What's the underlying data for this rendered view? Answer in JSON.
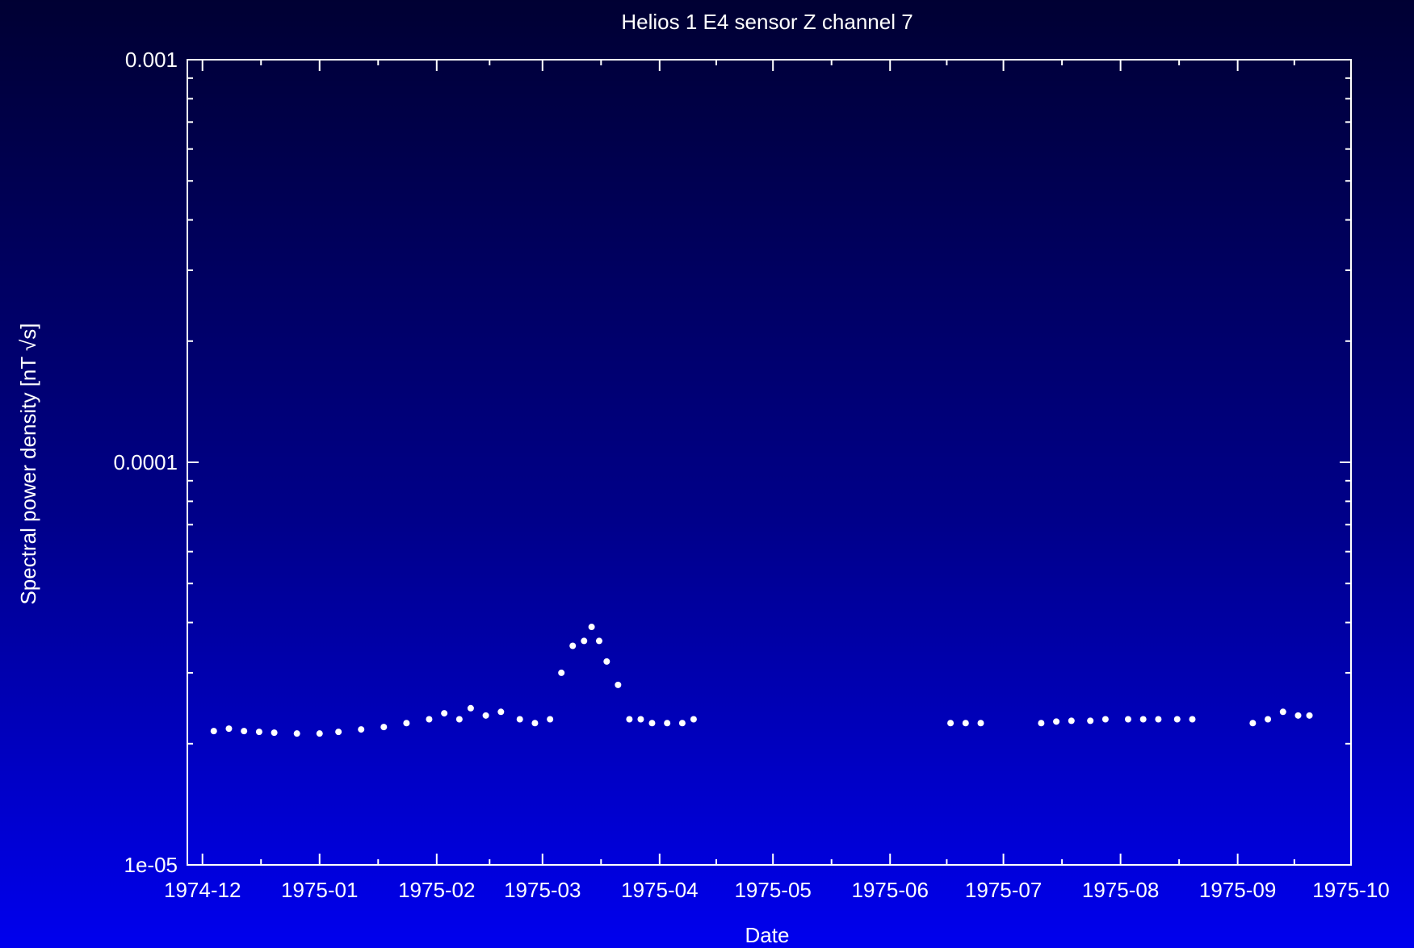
{
  "chart_data": {
    "type": "scatter",
    "title": "Helios 1 E4 sensor Z channel 7",
    "xlabel": "Date",
    "ylabel": "Spectral power density [nT √s]",
    "yscale": "log",
    "ylim": [
      1e-05,
      0.001
    ],
    "xlim": [
      "1974-11-27",
      "1975-10-01"
    ],
    "x_ticks": [
      "1974-12",
      "1975-01",
      "1975-02",
      "1975-03",
      "1975-04",
      "1975-05",
      "1975-06",
      "1975-07",
      "1975-08",
      "1975-09",
      "1975-10"
    ],
    "y_ticks": [
      "1e-05",
      "0.0001",
      "0.001"
    ],
    "grid": false,
    "legend": "none",
    "point_color": "#ffffff",
    "series": [
      {
        "x": [
          "1974-12-04",
          "1974-12-08",
          "1974-12-12",
          "1974-12-16",
          "1974-12-20",
          "1974-12-26",
          "1975-01-01",
          "1975-01-06",
          "1975-01-12",
          "1975-01-18",
          "1975-01-24",
          "1975-01-30",
          "1975-02-03",
          "1975-02-07",
          "1975-02-10",
          "1975-02-14",
          "1975-02-18",
          "1975-02-23",
          "1975-02-27",
          "1975-03-03",
          "1975-03-06",
          "1975-03-09",
          "1975-03-12",
          "1975-03-14",
          "1975-03-16",
          "1975-03-18",
          "1975-03-21",
          "1975-03-24",
          "1975-03-27",
          "1975-03-30",
          "1975-04-03",
          "1975-04-07",
          "1975-04-10",
          "1975-06-17",
          "1975-06-21",
          "1975-06-25",
          "1975-07-11",
          "1975-07-15",
          "1975-07-19",
          "1975-07-24",
          "1975-07-28",
          "1975-08-03",
          "1975-08-07",
          "1975-08-11",
          "1975-08-16",
          "1975-08-20",
          "1975-09-05",
          "1975-09-09",
          "1975-09-13",
          "1975-09-17",
          "1975-09-20"
        ],
        "y": [
          2.15e-05,
          2.18e-05,
          2.15e-05,
          2.14e-05,
          2.13e-05,
          2.12e-05,
          2.12e-05,
          2.14e-05,
          2.17e-05,
          2.2e-05,
          2.25e-05,
          2.3e-05,
          2.38e-05,
          2.3e-05,
          2.45e-05,
          2.35e-05,
          2.4e-05,
          2.3e-05,
          2.25e-05,
          2.3e-05,
          3e-05,
          3.5e-05,
          3.6e-05,
          3.9e-05,
          3.6e-05,
          3.2e-05,
          2.8e-05,
          2.3e-05,
          2.3e-05,
          2.25e-05,
          2.25e-05,
          2.25e-05,
          2.3e-05,
          2.25e-05,
          2.25e-05,
          2.25e-05,
          2.25e-05,
          2.27e-05,
          2.28e-05,
          2.28e-05,
          2.3e-05,
          2.3e-05,
          2.3e-05,
          2.3e-05,
          2.3e-05,
          2.3e-05,
          2.25e-05,
          2.3e-05,
          2.4e-05,
          2.35e-05,
          2.35e-05
        ]
      }
    ]
  }
}
